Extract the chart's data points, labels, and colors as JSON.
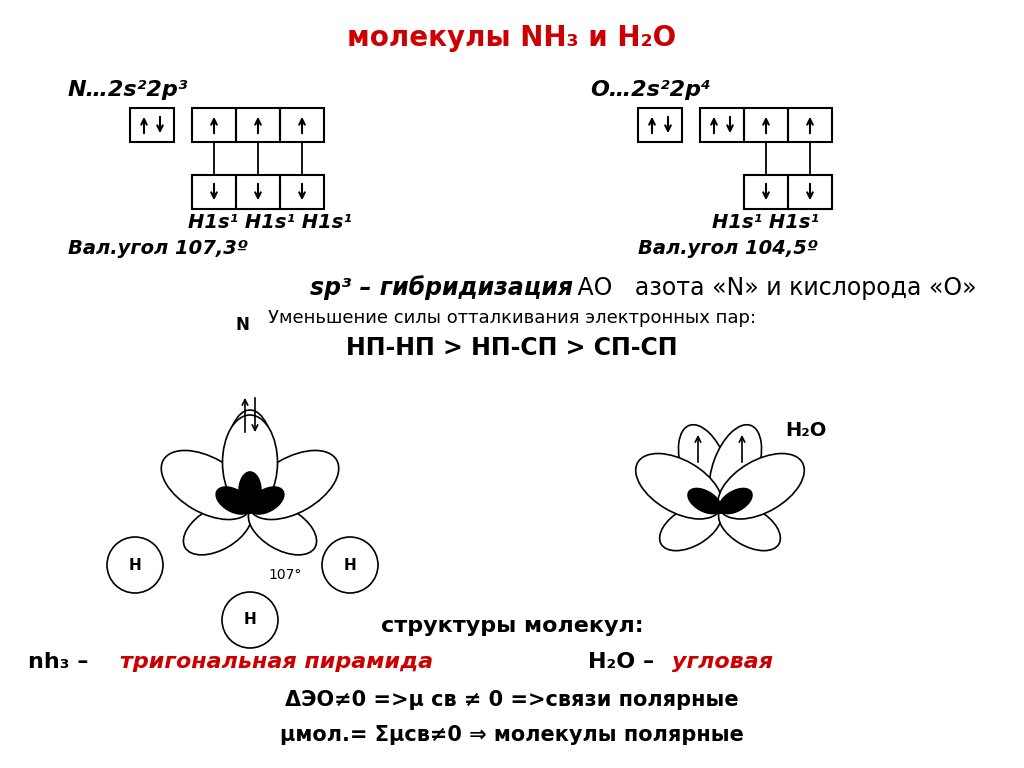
{
  "title": "молекулы NH₃ и H₂O",
  "title_color": "#cc0000",
  "bg_color": "#ffffff",
  "n_config": "N…2s²2p³",
  "o_config": "O…2s²2p⁴",
  "h1s1_nh3": "H1s¹ H1s¹ H1s¹",
  "h1s1_h2o": "H1s¹ H1s¹",
  "val_nh3": "Вал.угол 107,3º",
  "val_h2o": "Вал.угол 104,5º",
  "repulsion_line": "Уменьшение силы отталкивания электронных пар:",
  "np_line": "НП-НП > НП-СП > СП-СП",
  "structures": "структуры молекул:",
  "nh3_shape": "тригональная пирамида",
  "h2o_shape": "угловая",
  "eq1": "ΔЭО≠0 =>μ св ≠ 0 =>связи полярные",
  "eq2": "μмол.= Σμсв≠0 ⇒ молекулы полярные"
}
